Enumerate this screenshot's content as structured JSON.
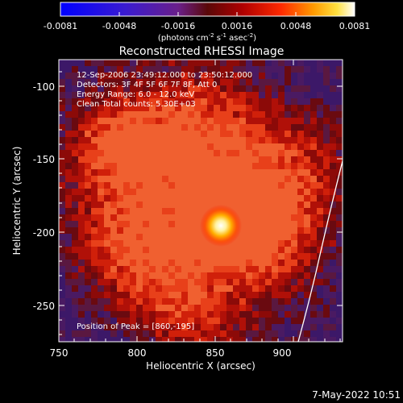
{
  "colorbar": {
    "ticks": [
      "-0.0081",
      "-0.0048",
      "-0.0016",
      "0.0016",
      "0.0048",
      "0.0081"
    ],
    "units_main": "(photons cm",
    "units_exp1": "-2",
    "units_mid": " s",
    "units_exp2": "-1",
    "units_end": " asec",
    "units_exp3": "-2",
    "units_close": ")"
  },
  "plot": {
    "title": "Reconstructed RHESSI Image",
    "xlabel": "Heliocentric X (arcsec)",
    "ylabel": "Heliocentric Y (arcsec)",
    "x_ticks": [
      "750",
      "800",
      "850",
      "900"
    ],
    "y_ticks": [
      "-100",
      "-150",
      "-200",
      "-250"
    ],
    "info_lines": [
      "12-Sep-2006 23:49:12.000 to 23:50:12.000",
      "Detectors: 3F 4F 5F 6F 7F 8F, Att 0",
      "Energy Range: 6.0 - 12.0 keV",
      "Clean    Total counts: 5.30E+03"
    ],
    "peak_label": "Position of Peak = [860,-195]"
  },
  "timestamp": "7-May-2022 10:51",
  "colors": {
    "background": "#000000",
    "text": "#ffffff",
    "frame": "#ffffff"
  }
}
